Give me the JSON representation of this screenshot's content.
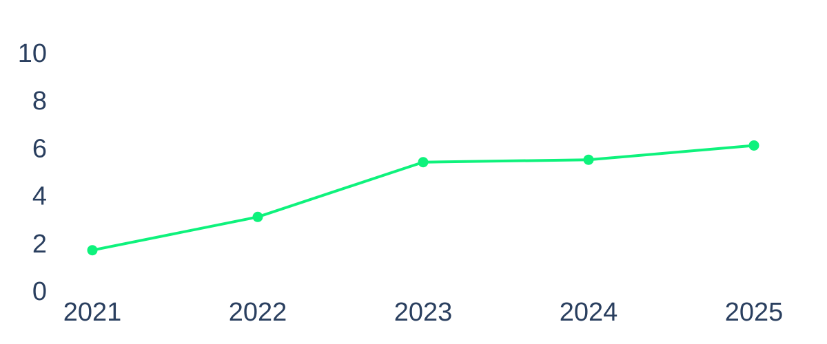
{
  "chart_data": {
    "type": "line",
    "categories": [
      "2021",
      "2022",
      "2023",
      "2024",
      "2025"
    ],
    "values": [
      1.8,
      3.2,
      5.5,
      5.6,
      6.2
    ],
    "color": "#0ef27c",
    "ylim": [
      0,
      10
    ],
    "yticks": [
      0,
      2,
      4,
      6,
      8,
      10
    ],
    "grid": false
  }
}
